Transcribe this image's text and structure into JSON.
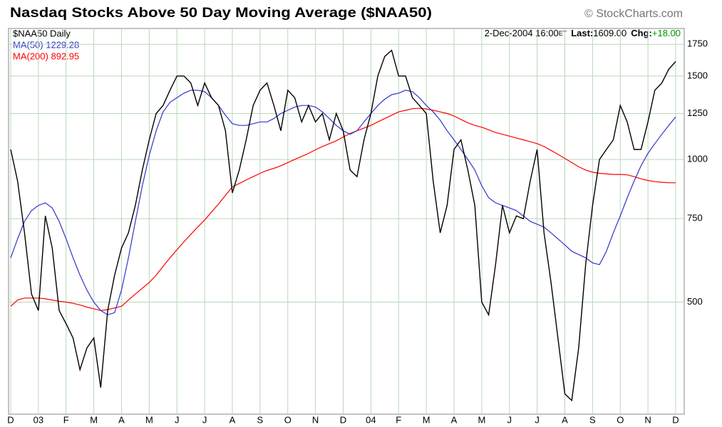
{
  "chart_data": {
    "type": "line",
    "title": "Nasdaq Stocks Above 50 Day Moving Average ($NAA50)",
    "credit": "© StockCharts.com",
    "info": {
      "date": "2-Dec-2004 16:00",
      "tz": "ET",
      "last_label": "Last:",
      "last": "1609.00",
      "chg_label": "Chg:",
      "chg": "+18.00"
    },
    "categories": [
      "D",
      null,
      null,
      null,
      "03",
      null,
      null,
      null,
      "F",
      null,
      null,
      null,
      "M",
      null,
      null,
      null,
      "A",
      null,
      null,
      null,
      "M",
      null,
      null,
      null,
      "J",
      null,
      null,
      null,
      "J",
      null,
      null,
      null,
      "A",
      null,
      null,
      null,
      "S",
      null,
      null,
      null,
      "O",
      null,
      null,
      null,
      "N",
      null,
      null,
      null,
      "D",
      null,
      null,
      null,
      "04",
      null,
      null,
      null,
      "F",
      null,
      null,
      null,
      "M",
      null,
      null,
      null,
      "A",
      null,
      null,
      null,
      "M",
      null,
      null,
      null,
      "J",
      null,
      null,
      null,
      "J",
      null,
      null,
      null,
      "A",
      null,
      null,
      null,
      "S",
      null,
      null,
      null,
      "O",
      null,
      null,
      null,
      "N",
      null,
      null,
      null,
      "D"
    ],
    "series": [
      {
        "name": "$NAA50 Daily",
        "color": "#000000",
        "values": [
          1050,
          900,
          700,
          520,
          480,
          760,
          650,
          480,
          450,
          420,
          360,
          400,
          420,
          330,
          480,
          570,
          650,
          700,
          800,
          950,
          1100,
          1250,
          1300,
          1400,
          1500,
          1500,
          1450,
          1300,
          1450,
          1350,
          1300,
          1150,
          850,
          950,
          1100,
          1300,
          1400,
          1450,
          1300,
          1150,
          1400,
          1350,
          1200,
          1300,
          1200,
          1250,
          1100,
          1250,
          1150,
          950,
          920,
          1100,
          1250,
          1500,
          1650,
          1700,
          1500,
          1500,
          1350,
          1300,
          1250,
          900,
          700,
          800,
          1050,
          1100,
          950,
          800,
          500,
          470,
          600,
          800,
          700,
          760,
          750,
          900,
          1050,
          700,
          550,
          420,
          320,
          310,
          400,
          600,
          800,
          1000,
          1050,
          1100,
          1300,
          1200,
          1050,
          1050,
          1200,
          1400,
          1450,
          1550,
          1609
        ]
      },
      {
        "name": "MA(50) 1229.28",
        "color": "#3333cc",
        "values": [
          620,
          680,
          740,
          780,
          800,
          810,
          790,
          740,
          680,
          620,
          570,
          530,
          500,
          480,
          470,
          475,
          530,
          620,
          740,
          880,
          1020,
          1150,
          1260,
          1320,
          1350,
          1380,
          1400,
          1400,
          1390,
          1350,
          1300,
          1240,
          1190,
          1180,
          1180,
          1190,
          1200,
          1200,
          1220,
          1250,
          1270,
          1290,
          1300,
          1300,
          1290,
          1260,
          1220,
          1180,
          1150,
          1130,
          1150,
          1200,
          1250,
          1300,
          1340,
          1370,
          1380,
          1400,
          1390,
          1350,
          1300,
          1260,
          1210,
          1150,
          1100,
          1050,
          1000,
          950,
          880,
          830,
          810,
          800,
          790,
          780,
          760,
          740,
          730,
          720,
          700,
          680,
          660,
          640,
          630,
          620,
          605,
          600,
          640,
          700,
          760,
          830,
          900,
          970,
          1030,
          1080,
          1130,
          1180,
          1229
        ]
      },
      {
        "name": "MA(200) 892.95",
        "color": "#ff0000",
        "values": [
          490,
          505,
          510,
          510,
          510,
          508,
          505,
          502,
          500,
          497,
          493,
          488,
          484,
          480,
          482,
          486,
          490,
          505,
          520,
          535,
          550,
          570,
          595,
          620,
          645,
          670,
          695,
          720,
          745,
          775,
          805,
          840,
          875,
          890,
          905,
          920,
          935,
          948,
          958,
          970,
          985,
          1000,
          1015,
          1030,
          1048,
          1065,
          1080,
          1095,
          1115,
          1135,
          1150,
          1165,
          1180,
          1200,
          1220,
          1240,
          1260,
          1270,
          1280,
          1282,
          1278,
          1270,
          1260,
          1250,
          1235,
          1215,
          1195,
          1180,
          1170,
          1155,
          1140,
          1130,
          1120,
          1110,
          1100,
          1090,
          1080,
          1065,
          1045,
          1025,
          1005,
          985,
          965,
          950,
          940,
          935,
          932,
          930,
          930,
          928,
          920,
          910,
          903,
          898,
          895,
          893,
          893
        ]
      }
    ],
    "ylim": [
      290,
      1890
    ],
    "yticks": [
      500,
      750,
      1000,
      1250,
      1500,
      1750
    ],
    "log_y": true,
    "grid": true
  }
}
